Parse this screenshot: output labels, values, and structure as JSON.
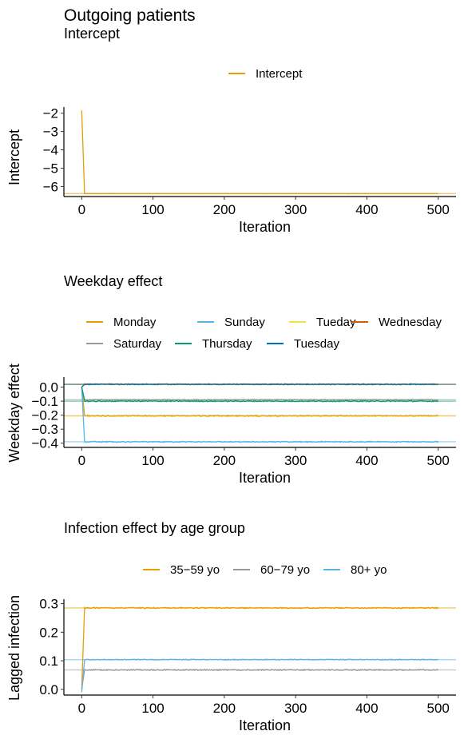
{
  "figure": {
    "title": "Outgoing patients"
  },
  "chart_data": [
    {
      "type": "line",
      "title": "Intercept",
      "xlabel": "Iteration",
      "ylabel": "Intercept",
      "xlim": [
        -25,
        525
      ],
      "ylim": [
        -6.55,
        -1.75
      ],
      "xticks": [
        0,
        100,
        200,
        300,
        400,
        500
      ],
      "xtick_labels": [
        "0",
        "100",
        "200",
        "300",
        "400",
        "500"
      ],
      "yticks": [
        -6,
        -5,
        -4,
        -3,
        -2
      ],
      "ytick_labels": [
        "−6",
        "−5",
        "−4",
        "−3",
        "−2"
      ],
      "legend_position": "top",
      "series": [
        {
          "name": "Intercept",
          "color": "#E69F00",
          "start": -1.85,
          "mean": -6.39,
          "noise": 0.004,
          "hline": -6.39
        }
      ]
    },
    {
      "type": "line",
      "title": "Weekday effect",
      "xlabel": "Iteration",
      "ylabel": "Weekday effect",
      "xlim": [
        -25,
        525
      ],
      "ylim": [
        -0.43,
        0.06
      ],
      "xticks": [
        0,
        100,
        200,
        300,
        400,
        500
      ],
      "xtick_labels": [
        "0",
        "100",
        "200",
        "300",
        "400",
        "500"
      ],
      "yticks": [
        0.0,
        -0.1,
        -0.2,
        -0.3,
        -0.4
      ],
      "ytick_labels": [
        "0.0",
        "−0.1",
        "−0.2",
        "−0.3",
        "−0.4"
      ],
      "legend_position": "top",
      "series": [
        {
          "name": "Monday",
          "color": "#E69F00",
          "start": 0.0,
          "mean": -0.205,
          "noise": 0.004,
          "hline": -0.205
        },
        {
          "name": "Sunday",
          "color": "#56B4E9",
          "start": 0.0,
          "mean": -0.39,
          "noise": 0.004,
          "hline": -0.39
        },
        {
          "name": "Tueday",
          "color": "#F0E442",
          "start": 0.0,
          "mean": 0.02,
          "noise": 0.003,
          "hline": 0.02
        },
        {
          "name": "Wednesday",
          "color": "#D55E00",
          "start": 0.0,
          "mean": 0.02,
          "noise": 0.004,
          "hline": 0.02
        },
        {
          "name": "Saturday",
          "color": "#999999",
          "start": 0.0,
          "mean": -0.09,
          "noise": 0.003,
          "hline": -0.09
        },
        {
          "name": "Thursday",
          "color": "#009E73",
          "start": 0.0,
          "mean": -0.1,
          "noise": 0.004,
          "hline": -0.1
        },
        {
          "name": "Tuesday",
          "color": "#0072B2",
          "start": 0.0,
          "mean": 0.02,
          "noise": 0.003,
          "hline": 0.02
        }
      ]
    },
    {
      "type": "line",
      "title": "Infection effect by age group",
      "xlabel": "Iteration",
      "ylabel": "Lagged infection",
      "xlim": [
        -25,
        525
      ],
      "ylim": [
        -0.02,
        0.31
      ],
      "xticks": [
        0,
        100,
        200,
        300,
        400,
        500
      ],
      "xtick_labels": [
        "0",
        "100",
        "200",
        "300",
        "400",
        "500"
      ],
      "yticks": [
        0.0,
        0.1,
        0.2,
        0.3
      ],
      "ytick_labels": [
        "0.0",
        "0.1",
        "0.2",
        "0.3"
      ],
      "legend_position": "top",
      "series": [
        {
          "name": "35−59 yo",
          "color": "#E69F00",
          "start": 0.0,
          "mean": 0.285,
          "noise": 0.002,
          "hline": 0.285
        },
        {
          "name": "60−79 yo",
          "color": "#999999",
          "start": 0.0,
          "mean": 0.068,
          "noise": 0.002,
          "hline": 0.068
        },
        {
          "name": "80+ yo",
          "color": "#56B4E9",
          "start": -0.01,
          "mean": 0.104,
          "noise": 0.0015,
          "hline": 0.104
        }
      ]
    }
  ]
}
